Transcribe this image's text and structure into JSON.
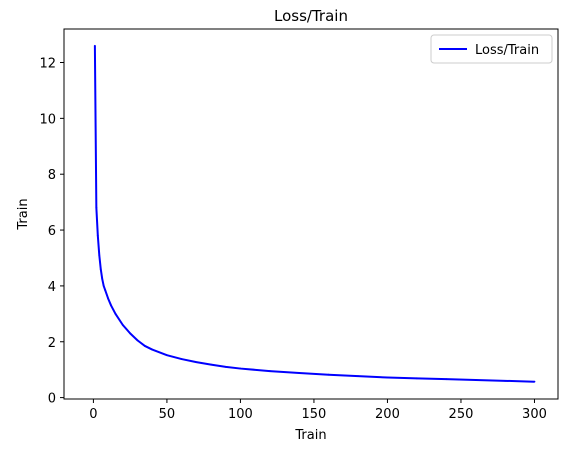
{
  "chart_data": {
    "type": "line",
    "title": "Loss/Train",
    "xlabel": "Train",
    "ylabel": "Train",
    "xlim": [
      -20,
      316
    ],
    "ylim": [
      -0.05,
      13.2
    ],
    "xticks": [
      0,
      50,
      100,
      150,
      200,
      250,
      300
    ],
    "yticks": [
      0,
      2,
      4,
      6,
      8,
      10,
      12
    ],
    "grid": false,
    "legend_position": "top-right",
    "series": [
      {
        "name": "Loss/Train",
        "color": "#0000ff",
        "x": [
          1,
          2,
          3,
          4,
          5,
          6,
          7,
          8,
          10,
          12,
          15,
          20,
          25,
          30,
          35,
          40,
          50,
          60,
          70,
          80,
          90,
          100,
          120,
          140,
          160,
          180,
          200,
          220,
          240,
          260,
          280,
          300
        ],
        "y": [
          12.6,
          6.8,
          5.8,
          5.1,
          4.6,
          4.25,
          4.0,
          3.85,
          3.55,
          3.3,
          3.0,
          2.6,
          2.3,
          2.05,
          1.85,
          1.72,
          1.52,
          1.38,
          1.27,
          1.18,
          1.1,
          1.04,
          0.95,
          0.88,
          0.82,
          0.77,
          0.72,
          0.69,
          0.66,
          0.63,
          0.6,
          0.57
        ]
      }
    ]
  }
}
